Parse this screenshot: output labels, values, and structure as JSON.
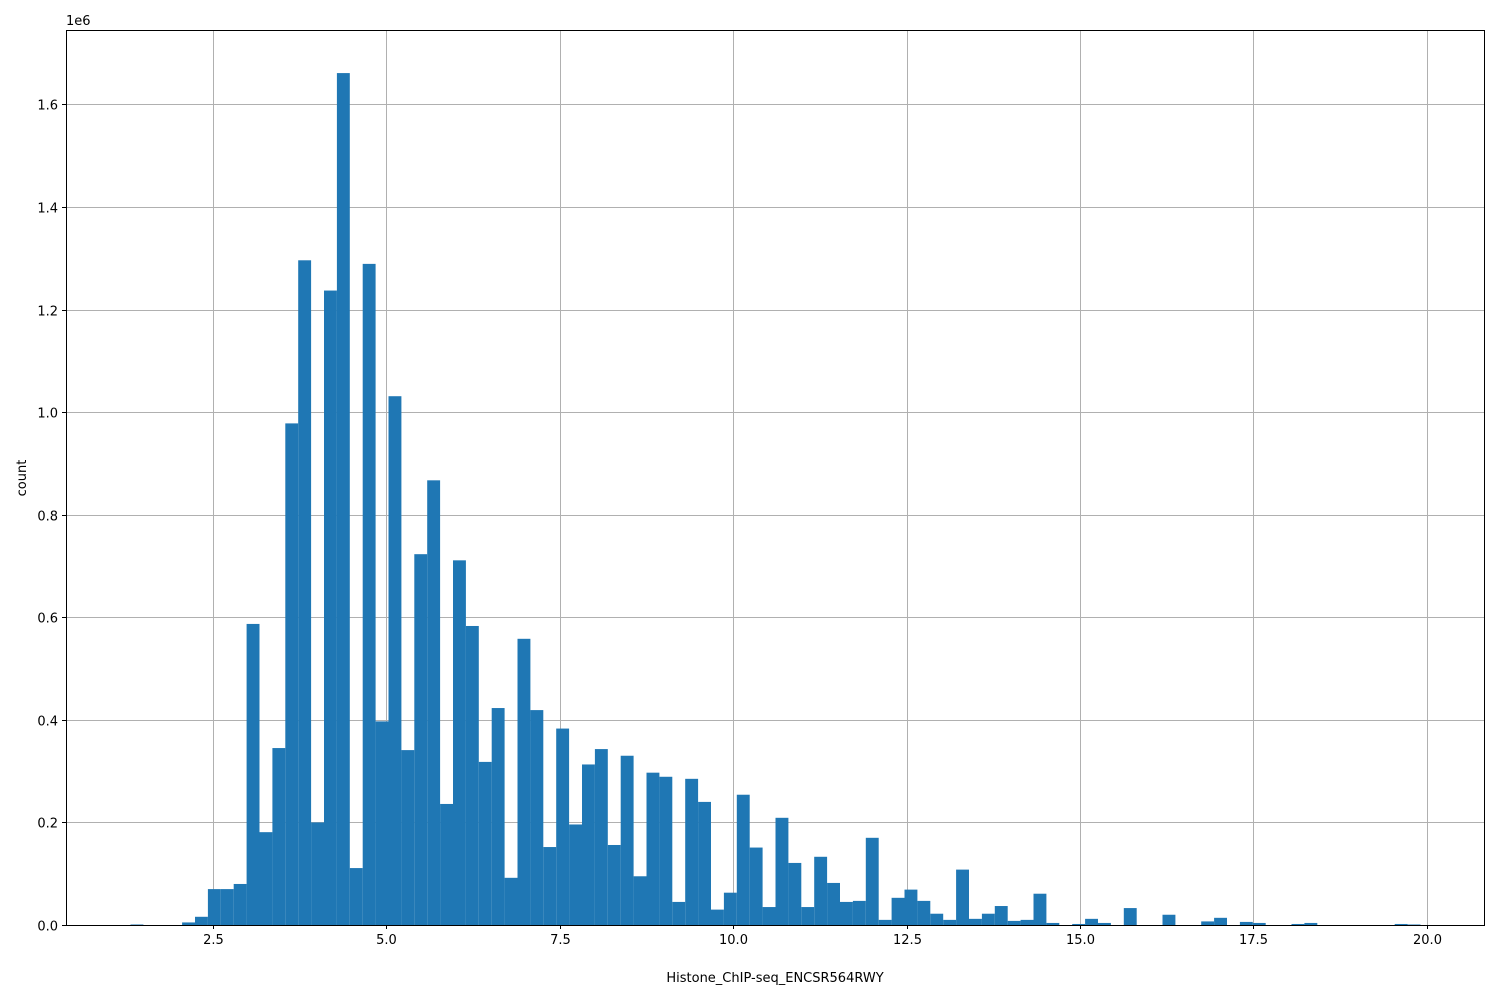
{
  "chart_data": {
    "type": "bar",
    "subtype": "histogram",
    "title": "",
    "xlabel": "Histone_ChIP-seq_ENCSR564RWY",
    "ylabel": "count",
    "y_offset_text": "1e6",
    "xlim": [
      0.38,
      20.84
    ],
    "ylim": [
      0,
      1745000
    ],
    "grid": true,
    "bar_color": "#1f77b4",
    "bin_start": 1.31,
    "bin_width": 0.186,
    "x_ticks": [
      2.5,
      5.0,
      7.5,
      10.0,
      12.5,
      15.0,
      17.5,
      20.0
    ],
    "x_tick_labels": [
      "2.5",
      "5.0",
      "7.5",
      "10.0",
      "12.5",
      "15.0",
      "17.5",
      "20.0"
    ],
    "y_ticks": [
      0,
      200000,
      400000,
      600000,
      800000,
      1000000,
      1200000,
      1400000,
      1600000
    ],
    "y_tick_labels": [
      "0.0",
      "0.2",
      "0.4",
      "0.6",
      "0.8",
      "1.0",
      "1.2",
      "1.4",
      "1.6"
    ],
    "counts": [
      1000,
      0,
      0,
      0,
      5000,
      16000,
      70000,
      70000,
      80000,
      587000,
      181000,
      345000,
      978000,
      1296000,
      200000,
      1237000,
      1661000,
      111000,
      1289000,
      397000,
      1031000,
      341000,
      723000,
      867000,
      236000,
      711000,
      583000,
      318000,
      423000,
      92000,
      558000,
      419000,
      152000,
      383000,
      196000,
      313000,
      343000,
      156000,
      330000,
      95000,
      297000,
      289000,
      45000,
      285000,
      240000,
      30000,
      63000,
      254000,
      151000,
      35000,
      209000,
      121000,
      35000,
      133000,
      82000,
      45000,
      47000,
      170000,
      10000,
      53000,
      69000,
      47000,
      22000,
      10000,
      108000,
      12000,
      22000,
      37000,
      8000,
      10000,
      61000,
      4000,
      0,
      2000,
      12000,
      4000,
      0,
      33000,
      0,
      0,
      20000,
      0,
      0,
      7000,
      14000,
      0,
      6000,
      4000,
      0,
      0,
      2000,
      4000,
      0,
      0,
      0,
      0,
      0,
      0,
      2000,
      1000
    ]
  }
}
